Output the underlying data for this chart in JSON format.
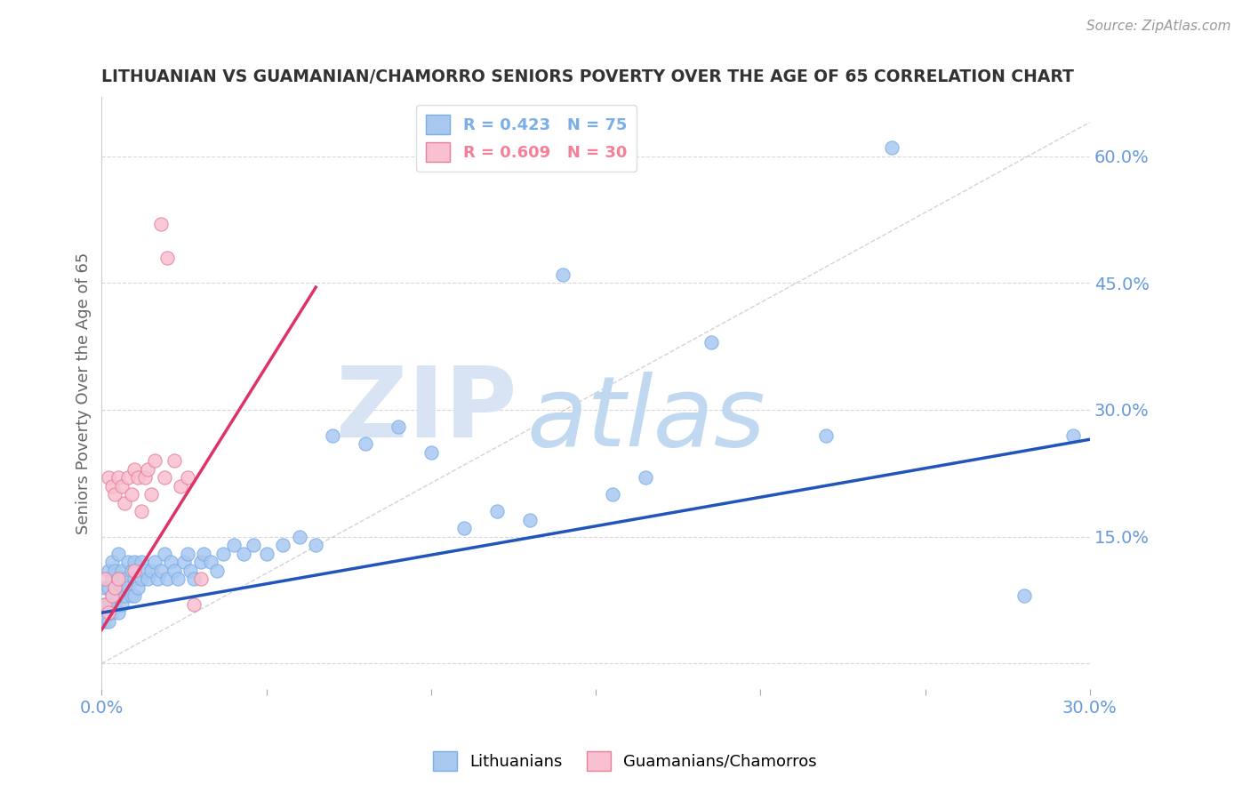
{
  "title": "LITHUANIAN VS GUAMANIAN/CHAMORRO SENIORS POVERTY OVER THE AGE OF 65 CORRELATION CHART",
  "source": "Source: ZipAtlas.com",
  "ylabel": "Seniors Poverty Over the Age of 65",
  "xlim": [
    0.0,
    0.3
  ],
  "ylim": [
    -0.03,
    0.67
  ],
  "yticks": [
    0.0,
    0.15,
    0.3,
    0.45,
    0.6
  ],
  "ytick_labels": [
    "",
    "15.0%",
    "30.0%",
    "45.0%",
    "60.0%"
  ],
  "xticks": [
    0.0,
    0.05,
    0.1,
    0.15,
    0.2,
    0.25,
    0.3
  ],
  "xtick_labels": [
    "0.0%",
    "",
    "",
    "",
    "",
    "",
    "30.0%"
  ],
  "watermark_zip": "ZIP",
  "watermark_atlas": "atlas",
  "legend_entries": [
    {
      "label": "R = 0.423   N = 75",
      "color": "#7aaee8"
    },
    {
      "label": "R = 0.609   N = 30",
      "color": "#f48098"
    }
  ],
  "blue_scatter_x": [
    0.001,
    0.001,
    0.001,
    0.002,
    0.002,
    0.002,
    0.002,
    0.003,
    0.003,
    0.003,
    0.003,
    0.004,
    0.004,
    0.004,
    0.005,
    0.005,
    0.005,
    0.005,
    0.006,
    0.006,
    0.006,
    0.007,
    0.007,
    0.008,
    0.008,
    0.009,
    0.009,
    0.01,
    0.01,
    0.01,
    0.011,
    0.012,
    0.012,
    0.013,
    0.014,
    0.015,
    0.016,
    0.017,
    0.018,
    0.019,
    0.02,
    0.021,
    0.022,
    0.023,
    0.025,
    0.026,
    0.027,
    0.028,
    0.03,
    0.031,
    0.033,
    0.035,
    0.037,
    0.04,
    0.043,
    0.046,
    0.05,
    0.055,
    0.06,
    0.065,
    0.07,
    0.08,
    0.09,
    0.1,
    0.11,
    0.12,
    0.13,
    0.14,
    0.155,
    0.165,
    0.185,
    0.22,
    0.24,
    0.28,
    0.295
  ],
  "blue_scatter_y": [
    0.05,
    0.07,
    0.09,
    0.05,
    0.07,
    0.09,
    0.11,
    0.06,
    0.08,
    0.1,
    0.12,
    0.07,
    0.09,
    0.11,
    0.06,
    0.08,
    0.1,
    0.13,
    0.07,
    0.09,
    0.11,
    0.08,
    0.1,
    0.09,
    0.12,
    0.08,
    0.11,
    0.08,
    0.1,
    0.12,
    0.09,
    0.1,
    0.12,
    0.11,
    0.1,
    0.11,
    0.12,
    0.1,
    0.11,
    0.13,
    0.1,
    0.12,
    0.11,
    0.1,
    0.12,
    0.13,
    0.11,
    0.1,
    0.12,
    0.13,
    0.12,
    0.11,
    0.13,
    0.14,
    0.13,
    0.14,
    0.13,
    0.14,
    0.15,
    0.14,
    0.27,
    0.26,
    0.28,
    0.25,
    0.16,
    0.18,
    0.17,
    0.46,
    0.2,
    0.22,
    0.38,
    0.27,
    0.61,
    0.08,
    0.27
  ],
  "pink_scatter_x": [
    0.001,
    0.001,
    0.002,
    0.002,
    0.003,
    0.003,
    0.004,
    0.004,
    0.005,
    0.005,
    0.006,
    0.007,
    0.008,
    0.009,
    0.01,
    0.01,
    0.011,
    0.012,
    0.013,
    0.014,
    0.015,
    0.016,
    0.018,
    0.019,
    0.02,
    0.022,
    0.024,
    0.026,
    0.028,
    0.03
  ],
  "pink_scatter_y": [
    0.07,
    0.1,
    0.06,
    0.22,
    0.08,
    0.21,
    0.09,
    0.2,
    0.1,
    0.22,
    0.21,
    0.19,
    0.22,
    0.2,
    0.11,
    0.23,
    0.22,
    0.18,
    0.22,
    0.23,
    0.2,
    0.24,
    0.52,
    0.22,
    0.48,
    0.24,
    0.21,
    0.22,
    0.07,
    0.1
  ],
  "blue_line_x": [
    0.0,
    0.3
  ],
  "blue_line_y": [
    0.06,
    0.265
  ],
  "pink_line_x": [
    0.0,
    0.065
  ],
  "pink_line_y": [
    0.04,
    0.445
  ],
  "ref_line_x": [
    0.0,
    0.3
  ],
  "ref_line_y": [
    0.0,
    0.64
  ],
  "scatter_size": 120,
  "blue_color": "#a8c8f0",
  "blue_edge": "#7aaee8",
  "pink_color": "#f8c0d0",
  "pink_edge": "#e88098",
  "blue_line_color": "#2255bb",
  "pink_line_color": "#dd3366",
  "ref_line_color": "#c8c8c8",
  "grid_color": "#c8c8c8",
  "title_color": "#333333",
  "axis_color": "#6699dd",
  "watermark_zip_color": "#d8e4f4",
  "watermark_atlas_color": "#c0d8f0",
  "background_color": "#ffffff"
}
